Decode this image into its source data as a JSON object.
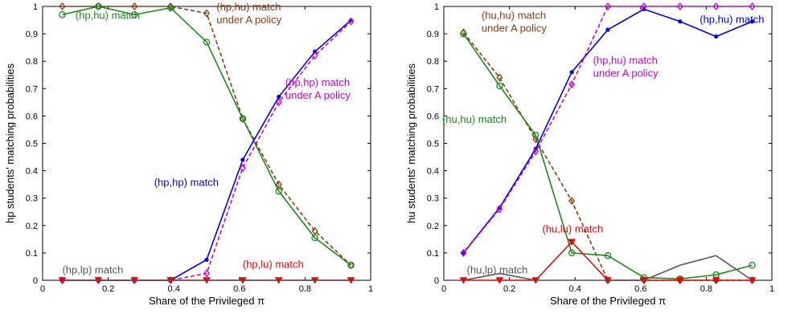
{
  "chart_data": [
    {
      "type": "line",
      "xlabel": "Share of the Privileged π",
      "ylabel": "hp students' matching probabilities",
      "xlim": [
        0,
        1
      ],
      "ylim": [
        0,
        1
      ],
      "grid": false,
      "xticks": [
        "0",
        "0.2",
        "0.4",
        "0.6",
        "0.8",
        "1"
      ],
      "yticks": [
        "0",
        "0.1",
        "0.2",
        "0.3",
        "0.4",
        "0.5",
        "0.6",
        "0.7",
        "0.8",
        "0.9",
        "1"
      ],
      "series": [
        {
          "color": "#8B3A0F",
          "dashed": true,
          "marker": "diamond",
          "x": [
            0.06,
            0.17,
            0.28,
            0.39,
            0.5,
            0.61,
            0.72,
            0.83,
            0.94
          ],
          "y": [
            1.0,
            1.0,
            1.0,
            1.0,
            0.975,
            0.59,
            0.35,
            0.18,
            0.055
          ]
        },
        {
          "color": "#1a8a1a",
          "dashed": false,
          "marker": "circle",
          "x": [
            0.06,
            0.17,
            0.28,
            0.39,
            0.5,
            0.61,
            0.72,
            0.83,
            0.94
          ],
          "y": [
            0.97,
            1.0,
            0.97,
            0.995,
            0.87,
            0.59,
            0.325,
            0.155,
            0.055
          ]
        },
        {
          "color": "#0000ee",
          "dashed": false,
          "marker": "dot",
          "x": [
            0.06,
            0.17,
            0.28,
            0.39,
            0.5,
            0.61,
            0.72,
            0.83,
            0.94
          ],
          "y": [
            0.0,
            0.0,
            0.0,
            0.0,
            0.075,
            0.44,
            0.67,
            0.835,
            0.95
          ]
        },
        {
          "color": "#cc00cc",
          "dashed": true,
          "marker": "diamond",
          "x": [
            0.06,
            0.17,
            0.28,
            0.39,
            0.5,
            0.61,
            0.72,
            0.83,
            0.94
          ],
          "y": [
            0.0,
            0.0,
            0.0,
            0.0,
            0.025,
            0.41,
            0.65,
            0.82,
            0.945
          ]
        },
        {
          "color": "#ee0000",
          "dashed": false,
          "marker": "triangle-down",
          "x": [
            0.06,
            0.17,
            0.28,
            0.39,
            0.5,
            0.61,
            0.72,
            0.83,
            0.94
          ],
          "y": [
            0,
            0,
            0,
            0,
            0,
            0,
            0,
            0,
            0
          ]
        },
        {
          "color": "#555555",
          "dashed": false,
          "marker": "none",
          "x": [
            0.06,
            0.17,
            0.28,
            0.39,
            0.5,
            0.61,
            0.72,
            0.83,
            0.94
          ],
          "y": [
            0,
            0,
            0,
            0,
            0,
            0,
            0,
            0,
            0
          ]
        }
      ],
      "annotations": [
        {
          "lines": [
            "(hp,hu) match"
          ],
          "color": "#1a8a1a",
          "x": 0.1,
          "y": 0.955
        },
        {
          "lines": [
            "(hp,hu) match",
            "under A policy"
          ],
          "color": "#8B3A0F",
          "x": 0.53,
          "y": 0.985
        },
        {
          "lines": [
            "(hp,hp) match",
            "under A policy"
          ],
          "color": "#cc00cc",
          "x": 0.74,
          "y": 0.71
        },
        {
          "lines": [
            "(hp,hp) match"
          ],
          "color": "#0000ee",
          "x": 0.34,
          "y": 0.345
        },
        {
          "lines": [
            "(hp,lp) match"
          ],
          "color": "#555555",
          "x": 0.06,
          "y": 0.025
        },
        {
          "lines": [
            "(hp,lu) match"
          ],
          "color": "#ee0000",
          "x": 0.61,
          "y": 0.045
        }
      ]
    },
    {
      "type": "line",
      "xlabel": "Share of the Privileged π",
      "ylabel": "hu students' matching probabilities",
      "xlim": [
        0,
        1
      ],
      "ylim": [
        0,
        1
      ],
      "grid": false,
      "xticks": [
        "0",
        "0.2",
        "0.4",
        "0.6",
        "0.8",
        "1"
      ],
      "yticks": [
        "0",
        "0.1",
        "0.2",
        "0.3",
        "0.4",
        "0.5",
        "0.6",
        "0.7",
        "0.8",
        "0.9",
        "1"
      ],
      "series": [
        {
          "color": "#8B3A0F",
          "dashed": true,
          "marker": "diamond",
          "x": [
            0.06,
            0.17,
            0.28,
            0.39,
            0.5,
            0.61,
            0.72,
            0.83,
            0.94
          ],
          "y": [
            0.905,
            0.74,
            0.515,
            0.29,
            0.0,
            0.0,
            0.0,
            0.0,
            0.0
          ]
        },
        {
          "color": "#1a8a1a",
          "dashed": false,
          "marker": "circle",
          "x": [
            0.06,
            0.17,
            0.28,
            0.39,
            0.5,
            0.61,
            0.72,
            0.83,
            0.94
          ],
          "y": [
            0.9,
            0.71,
            0.53,
            0.1,
            0.09,
            0.01,
            0.005,
            0.02,
            0.055
          ]
        },
        {
          "color": "#0000ee",
          "dashed": false,
          "marker": "dot",
          "x": [
            0.06,
            0.17,
            0.28,
            0.39,
            0.5,
            0.61,
            0.72,
            0.83,
            0.94
          ],
          "y": [
            0.1,
            0.265,
            0.48,
            0.76,
            0.915,
            0.99,
            0.945,
            0.89,
            0.945
          ]
        },
        {
          "color": "#cc00cc",
          "dashed": true,
          "marker": "diamond",
          "x": [
            0.06,
            0.17,
            0.28,
            0.39,
            0.5,
            0.61,
            0.72,
            0.83,
            0.94
          ],
          "y": [
            0.1,
            0.26,
            0.47,
            0.715,
            1.0,
            1.0,
            1.0,
            1.0,
            1.0
          ]
        },
        {
          "color": "#ee0000",
          "dashed": false,
          "marker": "triangle-down",
          "x": [
            0.06,
            0.17,
            0.28,
            0.39,
            0.5,
            0.61,
            0.72,
            0.83,
            0.94
          ],
          "y": [
            0.0,
            0.0,
            0.0,
            0.14,
            0.0,
            0.0,
            0.0,
            0.0,
            0.0
          ]
        },
        {
          "color": "#555555",
          "dashed": false,
          "marker": "none",
          "x": [
            0.06,
            0.17,
            0.28,
            0.39,
            0.5,
            0.61,
            0.72,
            0.83,
            0.94
          ],
          "y": [
            0.0,
            0.025,
            0.0,
            0.0,
            0.0,
            0.0,
            0.055,
            0.09,
            0.0
          ]
        }
      ],
      "annotations": [
        {
          "lines": [
            "(hu,hu) match",
            "under A policy"
          ],
          "color": "#8B3A0F",
          "x": 0.115,
          "y": 0.955
        },
        {
          "lines": [
            "(hp,hu) match"
          ],
          "color": "#0000ee",
          "x": 0.78,
          "y": 0.94
        },
        {
          "lines": [
            "(hp,hu) match",
            "under A policy"
          ],
          "color": "#cc00cc",
          "x": 0.455,
          "y": 0.79
        },
        {
          "lines": [
            "(hu,hu) match"
          ],
          "color": "#1a8a1a",
          "x": -0.005,
          "y": 0.575
        },
        {
          "lines": [
            "(hu,lu) match"
          ],
          "color": "#ee0000",
          "x": 0.3,
          "y": 0.175
        },
        {
          "lines": [
            "(hu,lp) match"
          ],
          "color": "#555555",
          "x": 0.07,
          "y": 0.025
        }
      ]
    }
  ]
}
